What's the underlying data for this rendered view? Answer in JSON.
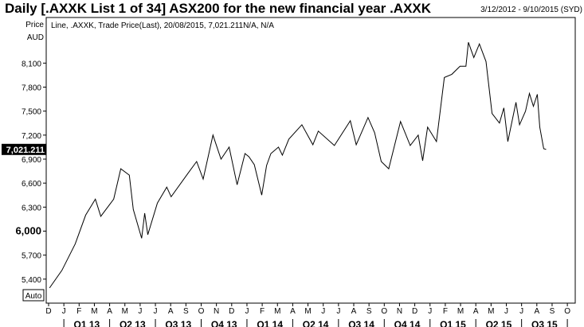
{
  "title": "Daily [.AXXK List 1 of 34] ASX200 for the new financial year .AXXK",
  "date_range": "3/12/2012 - 9/10/2015 (SYD)",
  "auto_button": "Auto",
  "chart_data": {
    "type": "line",
    "legend_text": "Line, .AXXK, Trade Price(Last), 20/08/2015, 7,021.211N/A, N/A",
    "ylabel": [
      "Price",
      "AUD"
    ],
    "ylim": [
      5100,
      8670
    ],
    "yticks": [
      5400,
      5700,
      6000,
      6300,
      6600,
      6900,
      7200,
      7500,
      7800,
      8100
    ],
    "ytick_labels": [
      "5,400",
      "5,700",
      "6,000",
      "6,300",
      "6,600",
      "6,900",
      "7,200",
      "7,500",
      "7,800",
      "8,100"
    ],
    "current_value_label": "7,021.211",
    "current_value": 7021.211,
    "x_start": "2012-12-01",
    "month_labels": [
      "D",
      "J",
      "F",
      "M",
      "A",
      "M",
      "J",
      "J",
      "A",
      "S",
      "O",
      "N",
      "D",
      "J",
      "F",
      "M",
      "A",
      "M",
      "J",
      "J",
      "A",
      "S",
      "O",
      "N",
      "D",
      "J",
      "F",
      "M",
      "A",
      "M",
      "J",
      "J",
      "A",
      "S",
      "O"
    ],
    "quarter_labels": [
      "Q1 13",
      "Q2 13",
      "Q3 13",
      "Q4 13",
      "Q1 14",
      "Q2 14",
      "Q3 14",
      "Q4 14",
      "Q1 15",
      "Q2 15",
      "Q3 15"
    ],
    "grid": false,
    "line_color": "#000000",
    "series": [
      {
        "x": [
          "2012-12-03",
          "2012-12-28",
          "2013-01-24",
          "2013-02-13",
          "2013-03-03",
          "2013-03-14",
          "2013-04-09",
          "2013-04-23",
          "2013-05-10",
          "2013-05-18",
          "2013-06-04",
          "2013-06-10",
          "2013-06-16",
          "2013-07-05",
          "2013-07-24",
          "2013-08-02",
          "2013-09-06",
          "2013-09-22",
          "2013-10-05",
          "2013-10-25",
          "2013-11-10",
          "2013-11-26",
          "2013-12-12",
          "2013-12-28",
          "2014-01-05",
          "2014-01-16",
          "2014-01-31",
          "2014-02-09",
          "2014-02-17",
          "2014-03-03",
          "2014-03-11",
          "2014-03-24",
          "2014-04-19",
          "2014-05-11",
          "2014-05-22",
          "2014-06-23",
          "2014-07-25",
          "2014-08-06",
          "2014-08-30",
          "2014-09-12",
          "2014-09-25",
          "2014-10-10",
          "2014-11-03",
          "2014-11-22",
          "2014-12-08",
          "2014-12-17",
          "2014-12-27",
          "2015-01-14",
          "2015-01-30",
          "2015-02-13",
          "2015-02-28",
          "2015-03-12",
          "2015-03-17",
          "2015-03-28",
          "2015-04-08",
          "2015-04-21",
          "2015-05-03",
          "2015-05-18",
          "2015-05-27",
          "2015-06-04",
          "2015-06-20",
          "2015-06-27",
          "2015-07-09",
          "2015-07-17",
          "2015-07-25",
          "2015-08-02",
          "2015-08-07",
          "2015-08-15",
          "2015-08-20"
        ],
        "y": [
          5290,
          5510,
          5840,
          6200,
          6400,
          6185,
          6400,
          6780,
          6700,
          6270,
          5910,
          6225,
          5955,
          6350,
          6550,
          6430,
          6730,
          6870,
          6650,
          7200,
          6900,
          7050,
          6580,
          6970,
          6930,
          6830,
          6450,
          6820,
          6970,
          7050,
          6950,
          7150,
          7330,
          7080,
          7250,
          7070,
          7380,
          7080,
          7420,
          7230,
          6870,
          6780,
          7370,
          7070,
          7200,
          6880,
          7300,
          7120,
          7920,
          7960,
          8060,
          8060,
          8360,
          8170,
          8340,
          8120,
          7470,
          7350,
          7540,
          7120,
          7610,
          7330,
          7500,
          7720,
          7560,
          7710,
          7300,
          7030,
          7021.211
        ]
      }
    ]
  }
}
